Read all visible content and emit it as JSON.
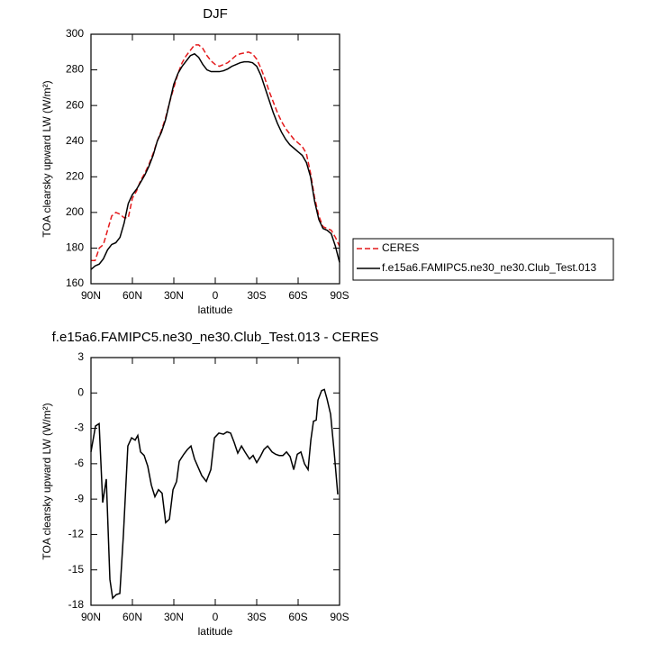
{
  "chart_data": [
    {
      "type": "line",
      "title": "DJF",
      "xlabel": "latitude",
      "ylabel": "TOA clearsky upward LW (W/m²)",
      "x": [
        90,
        87,
        84,
        81,
        78,
        75,
        72,
        69,
        66,
        63,
        60,
        57,
        54,
        51,
        48,
        45,
        42,
        39,
        36,
        33,
        30,
        27,
        24,
        21,
        18,
        15,
        12,
        9,
        6,
        3,
        0,
        -3,
        -6,
        -9,
        -12,
        -15,
        -18,
        -21,
        -24,
        -27,
        -30,
        -33,
        -36,
        -39,
        -42,
        -45,
        -48,
        -51,
        -54,
        -57,
        -60,
        -63,
        -66,
        -69,
        -72,
        -75,
        -78,
        -81,
        -84,
        -87,
        -90
      ],
      "series": [
        {
          "name": "CERES",
          "color": "#e41a1c",
          "dashed": true,
          "values": [
            173,
            173,
            180,
            182,
            190,
            198,
            200,
            199,
            197,
            197,
            208,
            212,
            218,
            222,
            227,
            233,
            240,
            246,
            253,
            262,
            270,
            278,
            284,
            288,
            291,
            294,
            294,
            292,
            288,
            285,
            283,
            282,
            283,
            284,
            286,
            288,
            289,
            289.5,
            290,
            289,
            286,
            281,
            275,
            268,
            262,
            256,
            251,
            247,
            244,
            241,
            239,
            237,
            233,
            222,
            208,
            198,
            192,
            191,
            190,
            186,
            181
          ]
        },
        {
          "name": "f.e15a6.FAMIPC5.ne30_ne30.Club_Test.013",
          "color": "#000000",
          "dashed": false,
          "values": [
            168,
            170,
            171,
            174,
            179,
            182,
            183,
            186,
            194,
            205,
            210,
            213,
            217,
            221,
            226,
            232,
            240,
            245,
            252,
            262,
            272,
            278,
            282,
            285,
            288,
            289,
            287,
            283,
            280,
            279,
            279,
            279,
            279.5,
            280.5,
            282,
            283,
            284,
            284.5,
            284.5,
            284,
            282,
            277,
            270,
            263,
            256,
            250,
            245,
            241,
            238,
            236,
            234,
            232,
            228,
            220,
            206,
            196,
            191,
            190,
            188,
            181,
            172
          ]
        }
      ],
      "xlim": [
        90,
        -90
      ],
      "xticks": [
        {
          "value": 90,
          "label": "90N"
        },
        {
          "value": 60,
          "label": "60N"
        },
        {
          "value": 30,
          "label": "30N"
        },
        0,
        {
          "value": -30,
          "label": "30S"
        },
        {
          "value": -60,
          "label": "60S"
        },
        {
          "value": -90,
          "label": "90S"
        }
      ],
      "ylim": [
        160,
        300
      ],
      "yticks": [
        160,
        180,
        200,
        220,
        240,
        260,
        280,
        300
      ],
      "legend": "right"
    },
    {
      "type": "line",
      "title": "f.e15a6.FAMIPC5.ne30_ne30.Club_Test.013 - CERES",
      "xlabel": "latitude",
      "ylabel": "TOA clearsky upward LW (W/m²)",
      "x": [
        90,
        86.7,
        84.1,
        81.5,
        78.9,
        76.3,
        74.3,
        71.7,
        69.1,
        66.5,
        63.3,
        60.6,
        58,
        56.1,
        54.1,
        51.5,
        48.9,
        46.3,
        43.7,
        41.1,
        38.5,
        35.9,
        33.2,
        30.6,
        28,
        26.1,
        22.8,
        20.2,
        17.6,
        15,
        12.4,
        9.8,
        6.5,
        3.2,
        0.6,
        -2.6,
        -5.9,
        -8.5,
        -11.1,
        -13.7,
        -16.3,
        -19,
        -21.5,
        -24.8,
        -27.4,
        -30,
        -32.6,
        -35.2,
        -37.9,
        -41.1,
        -43.7,
        -46.3,
        -49,
        -51.6,
        -54.2,
        -56.8,
        -59.4,
        -62,
        -64.6,
        -67.2,
        -69.2,
        -71.1,
        -73.1,
        -74.4,
        -77,
        -79,
        -80.9,
        -83.5,
        -86.1,
        -88.7
      ],
      "series": [
        {
          "color": "#000000",
          "dashed": false,
          "values": [
            -5,
            -2.8,
            -2.6,
            -9.3,
            -7.3,
            -15.8,
            -17.4,
            -17.1,
            -17.0,
            -12,
            -4.5,
            -3.8,
            -4,
            -3.6,
            -5,
            -5.3,
            -6.2,
            -7.8,
            -8.8,
            -8.2,
            -8.5,
            -11,
            -10.7,
            -8.2,
            -7.5,
            -5.8,
            -5.2,
            -4.8,
            -4.5,
            -5.6,
            -6.3,
            -7.0,
            -7.5,
            -6.5,
            -3.8,
            -3.4,
            -3.5,
            -3.3,
            -3.4,
            -4.2,
            -5.1,
            -4.5,
            -5.0,
            -5.6,
            -5.3,
            -5.9,
            -5.4,
            -4.8,
            -4.5,
            -5.0,
            -5.2,
            -5.3,
            -5.3,
            -5.0,
            -5.4,
            -6.5,
            -5.2,
            -5.0,
            -6.0,
            -6.5,
            -4.0,
            -2.4,
            -2.3,
            -0.6,
            0.2,
            0.3,
            -0.5,
            -1.8,
            -5,
            -8.6
          ]
        }
      ],
      "xlim": [
        90,
        -90
      ],
      "xticks": [
        {
          "value": 90,
          "label": "90N"
        },
        {
          "value": 60,
          "label": "60N"
        },
        {
          "value": 30,
          "label": "30N"
        },
        0,
        {
          "value": -30,
          "label": "30S"
        },
        {
          "value": -60,
          "label": "60S"
        },
        {
          "value": -90,
          "label": "90S"
        }
      ],
      "ylim": [
        -18,
        3
      ],
      "yticks": [
        -18,
        -15,
        -12,
        -9,
        -6,
        -3,
        0,
        3
      ]
    }
  ]
}
